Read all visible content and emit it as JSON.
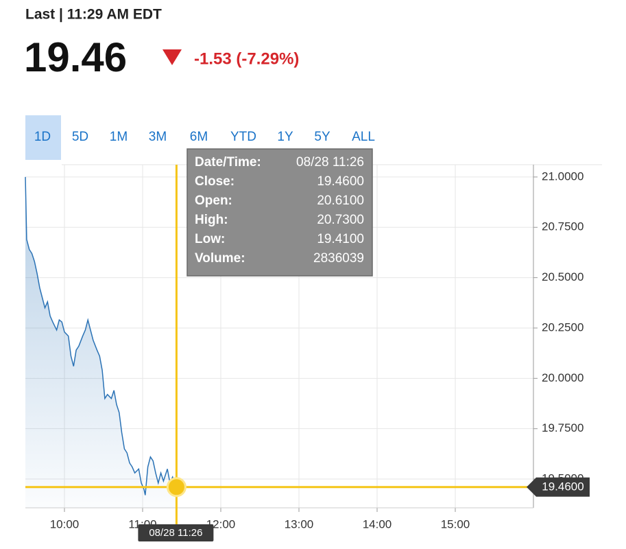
{
  "header": {
    "last": "Last | 11:29 AM EDT",
    "price": "19.46",
    "change": "-1.53 (-7.29%)"
  },
  "ranges": {
    "items": [
      "1D",
      "5D",
      "1M",
      "3M",
      "6M",
      "YTD",
      "1Y",
      "5Y",
      "ALL"
    ],
    "selected": 0
  },
  "tooltip": {
    "rows": [
      [
        "Date/Time:",
        "08/28 11:26"
      ],
      [
        "Close:",
        "19.4600"
      ],
      [
        "Open:",
        "20.6100"
      ],
      [
        "High:",
        "20.7300"
      ],
      [
        "Low:",
        "19.4100"
      ],
      [
        "Volume:",
        "2836039"
      ]
    ]
  },
  "chart_data": {
    "type": "area",
    "color": "#2a72b5",
    "grid": true,
    "x": [
      570,
      571,
      573,
      575,
      577,
      579,
      581,
      583,
      585,
      587,
      589,
      591,
      594,
      596,
      598,
      600,
      603,
      605,
      607,
      609,
      611,
      614,
      616,
      618,
      620,
      622,
      625,
      627,
      629,
      631,
      633,
      636,
      638,
      640,
      642,
      644,
      646,
      648,
      650,
      652,
      654,
      657,
      659,
      661,
      662,
      664,
      666,
      668,
      670,
      672,
      674,
      676,
      679,
      681,
      683,
      686
    ],
    "values": [
      21.0,
      20.69,
      20.64,
      20.62,
      20.58,
      20.52,
      20.45,
      20.4,
      20.35,
      20.38,
      20.31,
      20.28,
      20.24,
      20.29,
      20.28,
      20.23,
      20.21,
      20.11,
      20.06,
      20.14,
      20.16,
      20.21,
      20.24,
      20.29,
      20.24,
      20.19,
      20.14,
      20.11,
      20.04,
      19.9,
      19.92,
      19.9,
      19.94,
      19.87,
      19.83,
      19.73,
      19.65,
      19.63,
      19.58,
      19.56,
      19.53,
      19.55,
      19.48,
      19.45,
      19.42,
      19.56,
      19.61,
      19.59,
      19.53,
      19.48,
      19.53,
      19.49,
      19.55,
      19.48,
      19.51,
      19.46
    ],
    "xlim": [
      570,
      960
    ],
    "xticks": [
      {
        "value": 600,
        "label": "10:00"
      },
      {
        "value": 660,
        "label": "11:00"
      },
      {
        "value": 720,
        "label": "12:00"
      },
      {
        "value": 780,
        "label": "13:00"
      },
      {
        "value": 840,
        "label": "14:00"
      },
      {
        "value": 900,
        "label": "15:00"
      }
    ],
    "ylim": [
      19.357,
      21.061
    ],
    "yticks": [
      {
        "value": 19.5,
        "label": "19.5000"
      },
      {
        "value": 19.75,
        "label": "19.7500"
      },
      {
        "value": 20,
        "label": "20.0000"
      },
      {
        "value": 20.25,
        "label": "20.2500"
      },
      {
        "value": 20.5,
        "label": "20.5000"
      },
      {
        "value": 20.75,
        "label": "20.7500"
      },
      {
        "value": 21,
        "label": "21.0000"
      }
    ],
    "crosshair": {
      "time": 686,
      "time_label": "08/28 11:26",
      "value": 19.46,
      "label": "19.4600",
      "color": "#f5c518"
    }
  }
}
